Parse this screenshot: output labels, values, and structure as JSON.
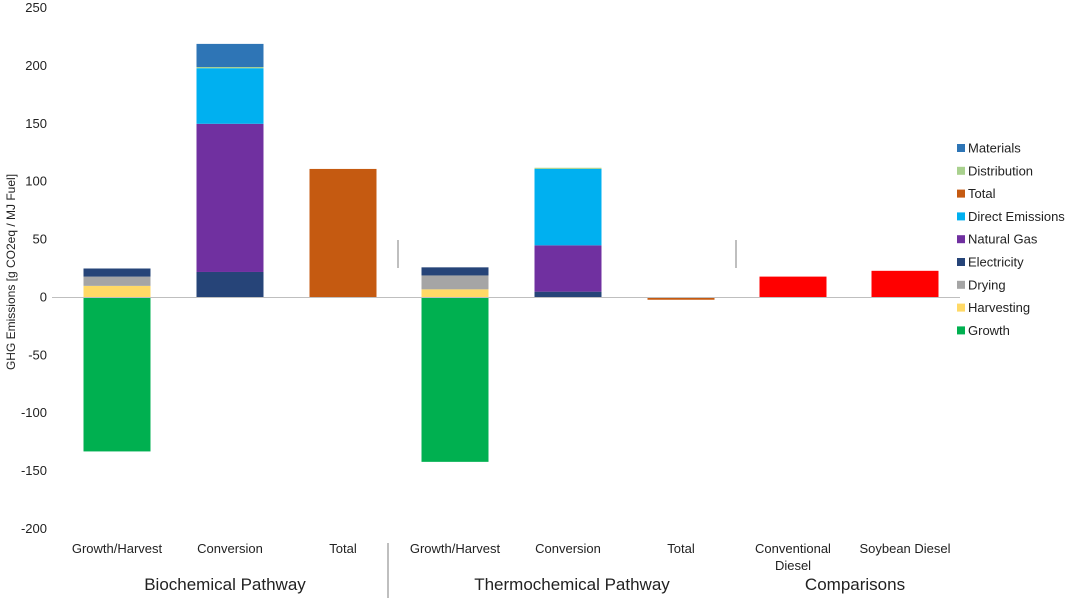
{
  "chart_data": {
    "type": "bar",
    "stacked": true,
    "title": "",
    "ylabel": "GHG Emissions [g CO2eq / MJ Fuel]",
    "ylim": [
      -200,
      250
    ],
    "yticks": [
      -200,
      -150,
      -100,
      -50,
      0,
      50,
      100,
      150,
      200,
      250
    ],
    "grid": false,
    "legend_position": "right",
    "categories": [
      "Growth/Harvest",
      "Conversion",
      "Total",
      "Growth/Harvest",
      "Conversion",
      "Total",
      "Conventional Diesel",
      "Soybean Diesel"
    ],
    "groups": [
      {
        "label": "Biochemical Pathway",
        "categories": [
          0,
          1,
          2
        ]
      },
      {
        "label": "Thermochemical Pathway",
        "categories": [
          3,
          4,
          5
        ]
      },
      {
        "label": "Comparisons",
        "categories": [
          6,
          7
        ]
      }
    ],
    "series": [
      {
        "name": "Growth",
        "color": "#00b050",
        "values": [
          -133,
          0,
          0,
          -142,
          0,
          0,
          0,
          0
        ]
      },
      {
        "name": "Harvesting",
        "color": "#ffd966",
        "values": [
          10,
          0,
          0,
          7,
          0,
          0,
          0,
          0
        ]
      },
      {
        "name": "Drying",
        "color": "#a5a5a5",
        "values": [
          8,
          0,
          0,
          12,
          0,
          0,
          0,
          0
        ]
      },
      {
        "name": "Electricity",
        "color": "#264478",
        "values": [
          7,
          22,
          0,
          7,
          5,
          0,
          0,
          0
        ]
      },
      {
        "name": "Natural Gas",
        "color": "#7030a0",
        "values": [
          0,
          128,
          0,
          0,
          40,
          0,
          0,
          0
        ]
      },
      {
        "name": "Direct Emissions",
        "color": "#00b0f0",
        "values": [
          0,
          48,
          0,
          0,
          66,
          0,
          0,
          0
        ]
      },
      {
        "name": "Total",
        "color": "#c55a11",
        "values": [
          0,
          0,
          111,
          0,
          0,
          -2,
          0,
          0
        ]
      },
      {
        "name": "Distribution",
        "color": "#a9d18e",
        "values": [
          0,
          1,
          0,
          0,
          1,
          0,
          0,
          0
        ]
      },
      {
        "name": "Materials",
        "color": "#2e75b6",
        "values": [
          0,
          20,
          0,
          0,
          0,
          0,
          0,
          0
        ]
      },
      {
        "name": "Comparison",
        "color": "#ff0000",
        "values": [
          0,
          0,
          0,
          0,
          0,
          0,
          18,
          23
        ]
      }
    ],
    "legend": [
      "Materials",
      "Distribution",
      "Total",
      "Direct Emissions",
      "Natural Gas",
      "Electricity",
      "Drying",
      "Harvesting",
      "Growth"
    ]
  }
}
